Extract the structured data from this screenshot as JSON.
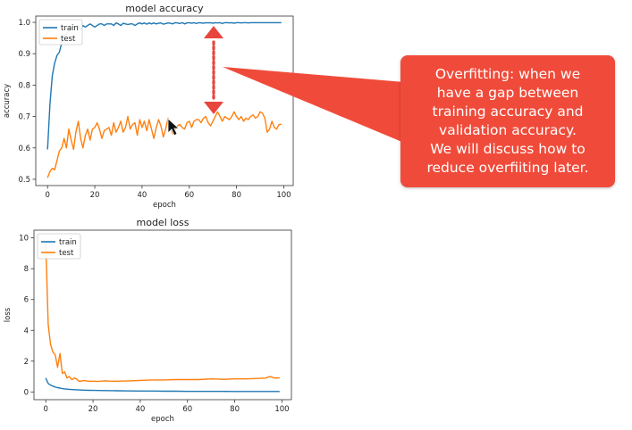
{
  "colors": {
    "train": "#1f77b4",
    "test": "#ff7f0e",
    "callout": "#f04b3a",
    "gap_arrow": "#e8453c"
  },
  "callout": {
    "lines": [
      "Overfitting: when we",
      "have a gap between",
      "training accuracy and",
      "validation accuracy.",
      "We will discuss how to",
      "reduce overfiiting later."
    ]
  },
  "chart_data": [
    {
      "type": "line",
      "title": "model accuracy",
      "xlabel": "epoch",
      "ylabel": "accuracy",
      "xlim": [
        -5,
        104
      ],
      "ylim": [
        0.48,
        1.02
      ],
      "xticks": [
        0,
        20,
        40,
        60,
        80,
        100
      ],
      "yticks": [
        0.5,
        0.6,
        0.7,
        0.8,
        0.9,
        1.0
      ],
      "ytick_labels": [
        "0.5",
        "0.6",
        "0.7",
        "0.8",
        "0.9",
        "1.0"
      ],
      "grid": false,
      "legend": "top-left",
      "legend_entries": [
        "train",
        "test"
      ],
      "series": [
        {
          "name": "train",
          "x": [
            0,
            1,
            2,
            3,
            4,
            5,
            6,
            7,
            8,
            9,
            10,
            11,
            12,
            13,
            14,
            15,
            16,
            17,
            18,
            19,
            20,
            21,
            22,
            23,
            24,
            25,
            26,
            27,
            28,
            29,
            30,
            31,
            32,
            33,
            34,
            35,
            36,
            37,
            38,
            39,
            40,
            41,
            42,
            43,
            44,
            45,
            46,
            47,
            48,
            49,
            50,
            51,
            52,
            53,
            54,
            55,
            56,
            57,
            58,
            59,
            60,
            61,
            62,
            63,
            64,
            65,
            66,
            67,
            68,
            69,
            70,
            71,
            72,
            73,
            74,
            75,
            76,
            77,
            78,
            79,
            80,
            81,
            82,
            83,
            84,
            85,
            86,
            87,
            88,
            89,
            90,
            91,
            92,
            93,
            94,
            95,
            96,
            97,
            98,
            99
          ],
          "y": [
            0.595,
            0.74,
            0.83,
            0.87,
            0.895,
            0.905,
            0.935,
            0.955,
            0.965,
            0.97,
            0.985,
            0.99,
            0.985,
            0.99,
            0.975,
            0.99,
            0.985,
            0.99,
            0.995,
            0.99,
            0.985,
            0.99,
            0.995,
            0.995,
            0.99,
            0.995,
            0.995,
            0.995,
            0.99,
            0.998,
            0.995,
            0.99,
            0.997,
            0.995,
            0.993,
            0.995,
            0.995,
            0.99,
            0.995,
            0.998,
            0.995,
            0.998,
            0.994,
            0.998,
            0.995,
            0.998,
            0.995,
            0.997,
            0.998,
            0.994,
            0.996,
            0.998,
            0.997,
            0.995,
            0.999,
            0.998,
            0.996,
            0.999,
            0.995,
            0.998,
            0.999,
            0.997,
            0.999,
            0.996,
            0.999,
            0.998,
            0.997,
            0.999,
            0.998,
            0.999,
            0.997,
            0.999,
            0.998,
            0.999,
            0.996,
            0.999,
            0.999,
            0.998,
            0.999,
            0.997,
            0.999,
            0.999,
            0.998,
            0.999,
            0.999,
            0.998,
            0.999,
            0.999,
            0.999,
            0.999,
            0.999,
            0.999,
            0.999,
            0.999,
            0.999,
            0.999,
            0.999,
            0.999,
            0.999,
            0.999
          ]
        },
        {
          "name": "test",
          "x": [
            0,
            1,
            2,
            3,
            4,
            5,
            6,
            7,
            8,
            9,
            10,
            11,
            12,
            13,
            14,
            15,
            16,
            17,
            18,
            19,
            20,
            21,
            22,
            23,
            24,
            25,
            26,
            27,
            28,
            29,
            30,
            31,
            32,
            33,
            34,
            35,
            36,
            37,
            38,
            39,
            40,
            41,
            42,
            43,
            44,
            45,
            46,
            47,
            48,
            49,
            50,
            51,
            52,
            53,
            54,
            55,
            56,
            57,
            58,
            59,
            60,
            61,
            62,
            63,
            64,
            65,
            66,
            67,
            68,
            69,
            70,
            71,
            72,
            73,
            74,
            75,
            76,
            77,
            78,
            79,
            80,
            81,
            82,
            83,
            84,
            85,
            86,
            87,
            88,
            89,
            90,
            91,
            92,
            93,
            94,
            95,
            96,
            97,
            98,
            99
          ],
          "y": [
            0.505,
            0.525,
            0.535,
            0.53,
            0.56,
            0.59,
            0.6,
            0.63,
            0.6,
            0.66,
            0.625,
            0.595,
            0.65,
            0.685,
            0.63,
            0.6,
            0.64,
            0.66,
            0.625,
            0.66,
            0.665,
            0.68,
            0.66,
            0.63,
            0.655,
            0.66,
            0.665,
            0.64,
            0.68,
            0.65,
            0.665,
            0.685,
            0.65,
            0.665,
            0.7,
            0.66,
            0.675,
            0.68,
            0.64,
            0.69,
            0.665,
            0.685,
            0.655,
            0.69,
            0.66,
            0.63,
            0.665,
            0.69,
            0.67,
            0.635,
            0.66,
            0.695,
            0.67,
            0.645,
            0.66,
            0.67,
            0.675,
            0.665,
            0.66,
            0.68,
            0.685,
            0.665,
            0.685,
            0.69,
            0.69,
            0.68,
            0.695,
            0.7,
            0.68,
            0.67,
            0.685,
            0.7,
            0.715,
            0.7,
            0.685,
            0.7,
            0.695,
            0.69,
            0.7,
            0.715,
            0.7,
            0.69,
            0.7,
            0.685,
            0.695,
            0.69,
            0.7,
            0.705,
            0.695,
            0.7,
            0.715,
            0.71,
            0.695,
            0.65,
            0.66,
            0.685,
            0.665,
            0.66,
            0.675,
            0.675
          ]
        }
      ]
    },
    {
      "type": "line",
      "title": "model loss",
      "xlabel": "epoch",
      "ylabel": "loss",
      "xlim": [
        -5,
        104
      ],
      "ylim": [
        -0.5,
        10.5
      ],
      "xticks": [
        0,
        20,
        40,
        60,
        80,
        100
      ],
      "yticks": [
        0,
        2,
        4,
        6,
        8,
        10
      ],
      "ytick_labels": [
        "0",
        "2",
        "4",
        "6",
        "8",
        "10"
      ],
      "grid": false,
      "legend": "top-left",
      "legend_entries": [
        "train",
        "test"
      ],
      "series": [
        {
          "name": "train",
          "x": [
            0,
            1,
            2,
            3,
            4,
            5,
            6,
            7,
            8,
            10,
            12,
            14,
            16,
            18,
            20,
            25,
            30,
            35,
            40,
            45,
            50,
            55,
            60,
            65,
            70,
            75,
            80,
            85,
            90,
            95,
            99
          ],
          "y": [
            0.9,
            0.55,
            0.45,
            0.38,
            0.32,
            0.28,
            0.25,
            0.22,
            0.2,
            0.17,
            0.15,
            0.13,
            0.12,
            0.11,
            0.1,
            0.09,
            0.08,
            0.07,
            0.06,
            0.06,
            0.05,
            0.05,
            0.04,
            0.04,
            0.04,
            0.04,
            0.03,
            0.03,
            0.03,
            0.03,
            0.03
          ]
        },
        {
          "name": "test",
          "x": [
            0,
            1,
            2,
            3,
            4,
            5,
            6,
            7,
            8,
            9,
            10,
            11,
            12,
            13,
            14,
            15,
            16,
            18,
            20,
            22,
            25,
            28,
            30,
            35,
            40,
            45,
            50,
            55,
            60,
            65,
            70,
            75,
            80,
            85,
            90,
            93,
            95,
            97,
            99
          ],
          "y": [
            9.7,
            4.4,
            3.1,
            2.6,
            2.4,
            1.6,
            2.5,
            1.2,
            1.3,
            0.9,
            1.0,
            0.8,
            0.9,
            0.85,
            0.7,
            0.7,
            0.75,
            0.7,
            0.7,
            0.68,
            0.72,
            0.7,
            0.7,
            0.72,
            0.75,
            0.78,
            0.78,
            0.8,
            0.8,
            0.8,
            0.85,
            0.82,
            0.85,
            0.85,
            0.88,
            0.9,
            1.0,
            0.9,
            0.92
          ]
        }
      ]
    }
  ]
}
